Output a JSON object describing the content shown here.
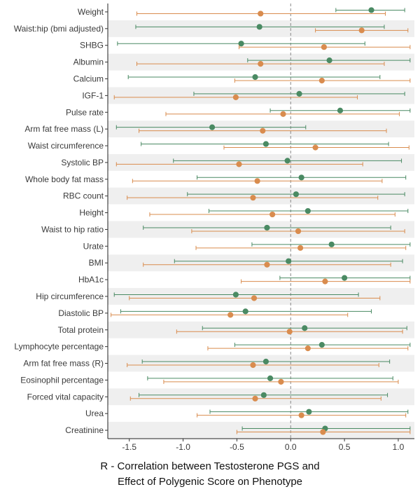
{
  "chart_data": {
    "type": "forest",
    "xlabel_lines": [
      "R - Correlation between Testosterone PGS and",
      "Effect of Polygenic Score on Phenotype"
    ],
    "xlim": [
      -1.7,
      1.15
    ],
    "xticks": [
      -1.5,
      -1.0,
      -0.5,
      0.0,
      0.5,
      1.0
    ],
    "xtick_labels": [
      "-1.5",
      "-1.0",
      "-0.5",
      "0.0",
      "0.5",
      "1.0"
    ],
    "reference_line": 0,
    "series_colors": {
      "green": "#4a8a63",
      "orange": "#d98c4e"
    },
    "categories": [
      "Weight",
      "Waist:hip (bmi adjusted)",
      "SHBG",
      "Albumin",
      "Calcium",
      "IGF-1",
      "Pulse rate",
      "Arm fat free mass (L)",
      "Waist circumference",
      "Systolic BP",
      "Whole body fat mass",
      "RBC count",
      "Height",
      "Waist to hip ratio",
      "Urate",
      "BMI",
      "HbA1c",
      "Hip circumference",
      "Diastolic BP",
      "Total protein",
      "Lymphocyte percentage",
      "Arm fat free mass (R)",
      "Eosinophil percentage",
      "Forced vital capacity",
      "Urea",
      "Creatinine"
    ],
    "series": [
      {
        "color": "#4a8a63",
        "points": [
          {
            "est": 0.75,
            "lo": 0.42,
            "hi": 1.06
          },
          {
            "est": -0.29,
            "lo": -1.44,
            "hi": 0.87
          },
          {
            "est": -0.46,
            "lo": -1.61,
            "hi": 0.69
          },
          {
            "est": 0.36,
            "lo": -0.4,
            "hi": 1.11
          },
          {
            "est": -0.33,
            "lo": -1.51,
            "hi": 0.83
          },
          {
            "est": 0.08,
            "lo": -0.9,
            "hi": 1.06
          },
          {
            "est": 0.46,
            "lo": -0.19,
            "hi": 1.11
          },
          {
            "est": -0.73,
            "lo": -1.62,
            "hi": 0.14
          },
          {
            "est": -0.23,
            "lo": -1.39,
            "hi": 0.91
          },
          {
            "est": -0.03,
            "lo": -1.09,
            "hi": 1.03
          },
          {
            "est": 0.1,
            "lo": -0.87,
            "hi": 1.07
          },
          {
            "est": 0.05,
            "lo": -0.96,
            "hi": 1.06
          },
          {
            "est": 0.16,
            "lo": -0.76,
            "hi": 1.09
          },
          {
            "est": -0.22,
            "lo": -1.37,
            "hi": 0.93
          },
          {
            "est": 0.38,
            "lo": -0.36,
            "hi": 1.11
          },
          {
            "est": -0.02,
            "lo": -1.08,
            "hi": 1.04
          },
          {
            "est": 0.5,
            "lo": -0.1,
            "hi": 1.11
          },
          {
            "est": -0.51,
            "lo": -1.64,
            "hi": 0.63
          },
          {
            "est": -0.42,
            "lo": -1.58,
            "hi": 0.75
          },
          {
            "est": 0.13,
            "lo": -0.82,
            "hi": 1.08
          },
          {
            "est": 0.29,
            "lo": -0.52,
            "hi": 1.11
          },
          {
            "est": -0.23,
            "lo": -1.38,
            "hi": 0.92
          },
          {
            "est": -0.19,
            "lo": -1.33,
            "hi": 0.95
          },
          {
            "est": -0.25,
            "lo": -1.41,
            "hi": 0.9
          },
          {
            "est": 0.17,
            "lo": -0.75,
            "hi": 1.09
          },
          {
            "est": 0.32,
            "lo": -0.45,
            "hi": 1.11
          }
        ]
      },
      {
        "color": "#d98c4e",
        "points": [
          {
            "est": -0.28,
            "lo": -1.43,
            "hi": 0.88
          },
          {
            "est": 0.66,
            "lo": 0.23,
            "hi": 1.09
          },
          {
            "est": 0.31,
            "lo": -0.48,
            "hi": 1.11
          },
          {
            "est": -0.28,
            "lo": -1.43,
            "hi": 0.87
          },
          {
            "est": 0.29,
            "lo": -0.52,
            "hi": 1.11
          },
          {
            "est": -0.51,
            "lo": -1.64,
            "hi": 0.62
          },
          {
            "est": -0.07,
            "lo": -1.16,
            "hi": 1.01
          },
          {
            "est": -0.26,
            "lo": -1.41,
            "hi": 0.89
          },
          {
            "est": 0.23,
            "lo": -0.62,
            "hi": 1.1
          },
          {
            "est": -0.48,
            "lo": -1.62,
            "hi": 0.67
          },
          {
            "est": -0.31,
            "lo": -1.47,
            "hi": 0.85
          },
          {
            "est": -0.35,
            "lo": -1.52,
            "hi": 0.81
          },
          {
            "est": -0.17,
            "lo": -1.31,
            "hi": 0.97
          },
          {
            "est": 0.07,
            "lo": -0.92,
            "hi": 1.06
          },
          {
            "est": 0.09,
            "lo": -0.88,
            "hi": 1.07
          },
          {
            "est": -0.22,
            "lo": -1.37,
            "hi": 0.93
          },
          {
            "est": 0.32,
            "lo": -0.46,
            "hi": 1.11
          },
          {
            "est": -0.34,
            "lo": -1.5,
            "hi": 0.83
          },
          {
            "est": -0.56,
            "lo": -1.67,
            "hi": 0.53
          },
          {
            "est": -0.01,
            "lo": -1.06,
            "hi": 1.04
          },
          {
            "est": 0.16,
            "lo": -0.77,
            "hi": 1.09
          },
          {
            "est": -0.35,
            "lo": -1.52,
            "hi": 0.82
          },
          {
            "est": -0.09,
            "lo": -1.18,
            "hi": 1.0
          },
          {
            "est": -0.33,
            "lo": -1.49,
            "hi": 0.84
          },
          {
            "est": 0.1,
            "lo": -0.87,
            "hi": 1.07
          },
          {
            "est": 0.3,
            "lo": -0.5,
            "hi": 1.11
          }
        ]
      }
    ]
  }
}
